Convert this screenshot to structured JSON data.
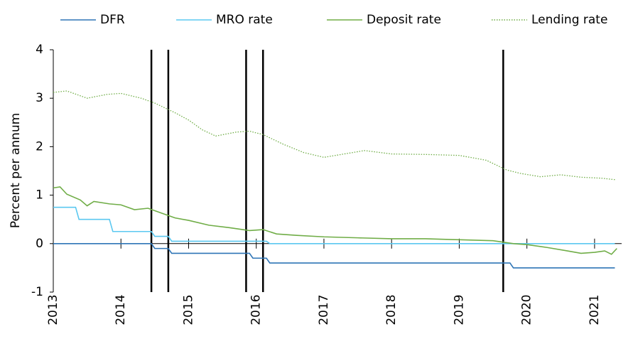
{
  "chart_data": {
    "type": "line",
    "y_label": "Percent per annum",
    "xlim": [
      2013,
      2021.4
    ],
    "xticks": [
      2013,
      2014,
      2015,
      2016,
      2017,
      2018,
      2019,
      2020,
      2021
    ],
    "ylim": [
      -1,
      4
    ],
    "yticks": [
      -1,
      0,
      1,
      2,
      3,
      4
    ],
    "vlines": [
      2014.45,
      2014.7,
      2015.85,
      2016.1,
      2019.65
    ],
    "series": [
      {
        "name": "DFR",
        "color": "#2e75b6",
        "dash": "solid",
        "x": [
          2013,
          2014.45,
          2014.5,
          2014.7,
          2014.75,
          2015.9,
          2015.95,
          2016.15,
          2016.2,
          2019.75,
          2019.8,
          2021.3
        ],
        "values": [
          0,
          0,
          -0.1,
          -0.1,
          -0.2,
          -0.2,
          -0.3,
          -0.3,
          -0.4,
          -0.4,
          -0.5,
          -0.5
        ]
      },
      {
        "name": "MRO rate",
        "color": "#5bc8f0",
        "dash": "solid",
        "x": [
          2013,
          2013.33,
          2013.38,
          2013.83,
          2013.88,
          2014.45,
          2014.5,
          2014.7,
          2014.75,
          2016.15,
          2016.2,
          2021.3
        ],
        "values": [
          0.75,
          0.75,
          0.5,
          0.5,
          0.25,
          0.25,
          0.15,
          0.15,
          0.05,
          0.05,
          0,
          0
        ]
      },
      {
        "name": "Deposit rate",
        "color": "#70ad47",
        "dash": "solid",
        "x": [
          2013,
          2013.1,
          2013.2,
          2013.4,
          2013.5,
          2013.6,
          2013.83,
          2014,
          2014.2,
          2014.4,
          2014.6,
          2014.8,
          2015,
          2015.3,
          2015.6,
          2015.9,
          2016.1,
          2016.3,
          2016.6,
          2017,
          2017.5,
          2018,
          2018.5,
          2019,
          2019.5,
          2019.8,
          2020,
          2020.3,
          2020.6,
          2020.8,
          2021,
          2021.15,
          2021.25,
          2021.33
        ],
        "values": [
          1.15,
          1.17,
          1.02,
          0.9,
          0.78,
          0.87,
          0.82,
          0.8,
          0.7,
          0.73,
          0.63,
          0.53,
          0.48,
          0.38,
          0.33,
          0.27,
          0.29,
          0.2,
          0.17,
          0.14,
          0.12,
          0.1,
          0.1,
          0.08,
          0.06,
          0,
          -0.02,
          -0.08,
          -0.15,
          -0.2,
          -0.18,
          -0.15,
          -0.22,
          -0.1
        ]
      },
      {
        "name": "Lending rate",
        "color": "#70ad47",
        "dash": "dotted",
        "x": [
          2013,
          2013.2,
          2013.5,
          2013.8,
          2014,
          2014.3,
          2014.5,
          2014.8,
          2015,
          2015.2,
          2015.4,
          2015.7,
          2015.9,
          2016.1,
          2016.4,
          2016.7,
          2017,
          2017.3,
          2017.6,
          2018,
          2018.5,
          2019,
          2019.4,
          2019.7,
          2019.9,
          2020.2,
          2020.5,
          2020.8,
          2021.1,
          2021.3
        ],
        "values": [
          3.12,
          3.15,
          3.0,
          3.08,
          3.1,
          3.0,
          2.9,
          2.7,
          2.55,
          2.35,
          2.22,
          2.3,
          2.32,
          2.25,
          2.05,
          1.88,
          1.78,
          1.85,
          1.92,
          1.85,
          1.84,
          1.82,
          1.72,
          1.52,
          1.45,
          1.38,
          1.42,
          1.37,
          1.35,
          1.32
        ]
      }
    ]
  }
}
